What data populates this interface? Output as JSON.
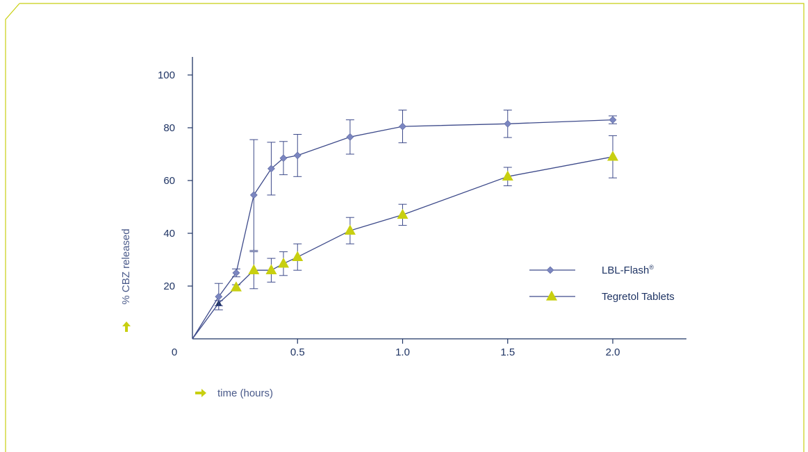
{
  "colors": {
    "frame": "#c8cf10",
    "axis": "#1f3464",
    "line": "#3d4a8a",
    "marker_diamond": "#7b86c0",
    "marker_triangle": "#c8cf10",
    "accent_arrow": "#c8cf10",
    "label": "#4a5a8a"
  },
  "chart_data": {
    "type": "line",
    "xlabel": "time (hours)",
    "ylabel": "% CBZ released",
    "xlim": [
      0,
      2.35
    ],
    "ylim": [
      0,
      105
    ],
    "x_ticks": [
      0.5,
      1.0,
      1.5,
      2.0
    ],
    "x_tick_labels": [
      "0.5",
      "1.0",
      "1.5",
      "2.0"
    ],
    "y_ticks": [
      20,
      40,
      60,
      80,
      100
    ],
    "y_tick_labels": [
      "20",
      "40",
      "60",
      "80",
      "100"
    ],
    "origin_label": "0",
    "grid": false,
    "legend_position": "center-right",
    "series": [
      {
        "name": "LBL-Flash",
        "name_superscript": "®",
        "marker": "diamond",
        "points": [
          {
            "x": 0,
            "y": 0
          },
          {
            "x": 0.125,
            "y": 16,
            "err": 5
          },
          {
            "x": 0.208,
            "y": 25,
            "err": 1.5
          },
          {
            "x": 0.292,
            "y": 54.5,
            "err": 21
          },
          {
            "x": 0.375,
            "y": 64.5,
            "err": 10
          },
          {
            "x": 0.433,
            "y": 68.5,
            "err": 6.3
          },
          {
            "x": 0.5,
            "y": 69.5,
            "err": 8
          },
          {
            "x": 0.75,
            "y": 76.5,
            "err": 6.5
          },
          {
            "x": 1.0,
            "y": 80.5,
            "err": 6.2
          },
          {
            "x": 1.5,
            "y": 81.5,
            "err": 5.2
          },
          {
            "x": 2.0,
            "y": 83,
            "err": 1.5
          }
        ]
      },
      {
        "name": "Tegretol Tablets",
        "marker": "triangle",
        "points": [
          {
            "x": 0,
            "y": 0
          },
          {
            "x": 0.125,
            "y": 13.5,
            "err": 1
          },
          {
            "x": 0.208,
            "y": 19.5,
            "err": 1
          },
          {
            "x": 0.292,
            "y": 26,
            "err": 7
          },
          {
            "x": 0.375,
            "y": 26,
            "err": 4.5
          },
          {
            "x": 0.433,
            "y": 28.5,
            "err": 4.5
          },
          {
            "x": 0.5,
            "y": 31,
            "err": 5
          },
          {
            "x": 0.75,
            "y": 41,
            "err": 5
          },
          {
            "x": 1.0,
            "y": 47,
            "err": 4
          },
          {
            "x": 1.5,
            "y": 61.5,
            "err": 3.5
          },
          {
            "x": 2.0,
            "y": 69,
            "err": 8
          }
        ]
      }
    ]
  }
}
